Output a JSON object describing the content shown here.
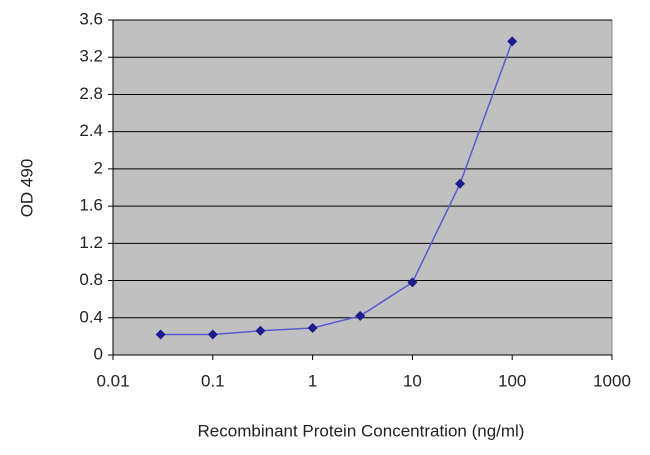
{
  "chart_data": {
    "type": "line",
    "x_label": "Recombinant Protein Concentration (ng/ml)",
    "y_label": "OD 490",
    "xscale": "log",
    "x": [
      0.03,
      0.1,
      0.3,
      1,
      3,
      10,
      30,
      100
    ],
    "series": [
      {
        "color": "#5a5ad0",
        "marker_color": "#1c1c8c",
        "values": [
          0.22,
          0.22,
          0.26,
          0.29,
          0.42,
          0.78,
          1.84,
          3.37
        ]
      }
    ],
    "xlim": [
      0.01,
      1000
    ],
    "xticks": [
      0.01,
      0.1,
      1,
      10,
      100,
      1000
    ],
    "ylim": [
      0,
      3.6
    ],
    "yticks": [
      0,
      0.4,
      0.8,
      1.2,
      1.6,
      2,
      2.4,
      2.8,
      3.2,
      3.6
    ],
    "grid": true,
    "plot_background": "#c0c0c0"
  }
}
